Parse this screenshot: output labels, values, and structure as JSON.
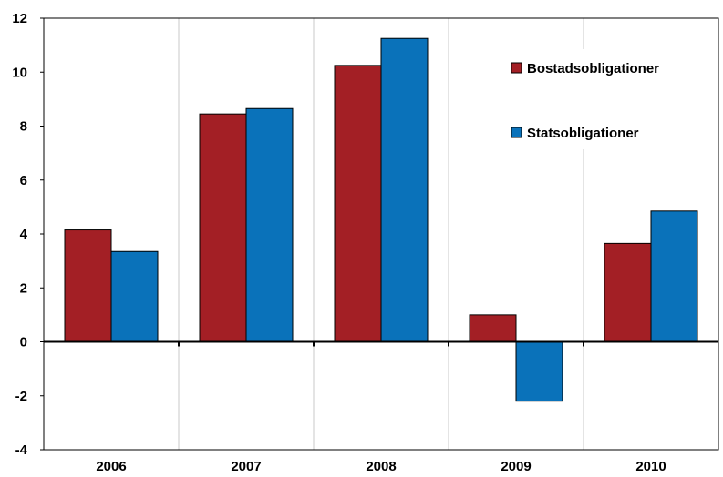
{
  "chart_data": {
    "type": "bar",
    "title": "",
    "xlabel": "",
    "ylabel": "",
    "categories": [
      "2006",
      "2007",
      "2008",
      "2009",
      "2010"
    ],
    "series": [
      {
        "name": "Bostadsobligationer",
        "values": [
          4.15,
          8.45,
          10.25,
          1.0,
          3.65
        ],
        "color": "#A31F25"
      },
      {
        "name": "Statsobligationer",
        "values": [
          3.35,
          8.65,
          11.25,
          -2.2,
          4.85
        ],
        "color": "#0A72BA"
      }
    ],
    "ylim": [
      -4,
      12
    ],
    "yticks": [
      "-4",
      "-2",
      "0",
      "2",
      "4",
      "6",
      "8",
      "10",
      "12"
    ],
    "grid": "vertical",
    "legend_position": "top-right"
  }
}
